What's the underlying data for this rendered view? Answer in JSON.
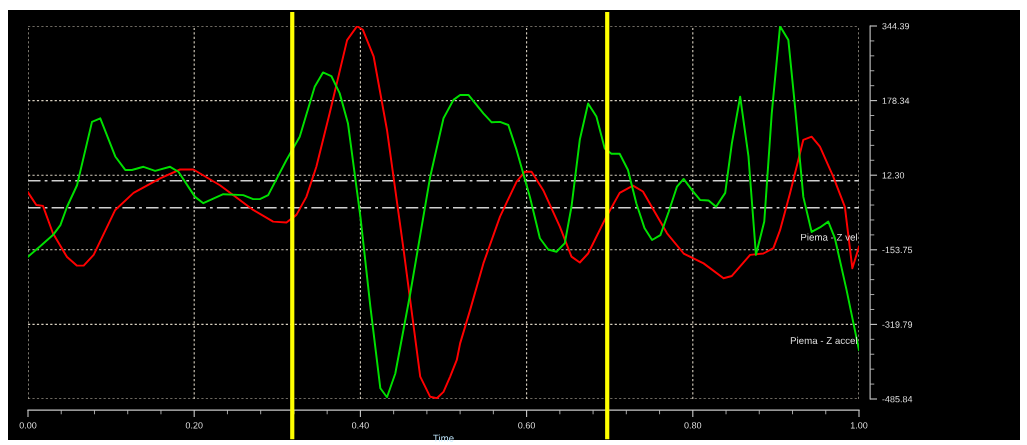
{
  "chart_data": {
    "type": "line",
    "xlabel": "Time",
    "xlim": [
      0,
      1
    ],
    "ylim": [
      -485.84,
      344.39
    ],
    "xticks": [
      {
        "value": 0,
        "label": "0.00"
      },
      {
        "value": 0.2,
        "label": "0.20"
      },
      {
        "value": 0.4,
        "label": "0.40"
      },
      {
        "value": 0.6,
        "label": "0.60"
      },
      {
        "value": 0.8,
        "label": "0.80"
      },
      {
        "value": 1,
        "label": "1.00"
      }
    ],
    "yticks": [
      -485.84,
      -319.79,
      -153.75,
      {
        "value": 12.3,
        "label": "12.30"
      },
      178.34,
      344.39
    ],
    "grid": true,
    "legend": false,
    "line_style": "solid",
    "marker": "none",
    "series": [
      {
        "name": "Piema - Z vel",
        "color": "#ff0000",
        "x": [
          0.0,
          0.01,
          0.018,
          0.03,
          0.047,
          0.059,
          0.067,
          0.079,
          0.105,
          0.127,
          0.159,
          0.183,
          0.199,
          0.231,
          0.271,
          0.295,
          0.311,
          0.323,
          0.335,
          0.347,
          0.363,
          0.384,
          0.396,
          0.403,
          0.416,
          0.432,
          0.452,
          0.472,
          0.484,
          0.492,
          0.5,
          0.508,
          0.516,
          0.52,
          0.532,
          0.548,
          0.568,
          0.588,
          0.598,
          0.606,
          0.62,
          0.64,
          0.654,
          0.664,
          0.674,
          0.696,
          0.712,
          0.728,
          0.74,
          0.769,
          0.789,
          0.813,
          0.837,
          0.847,
          0.869,
          0.885,
          0.897,
          0.905,
          0.917,
          0.933,
          0.943,
          0.953,
          0.969,
          0.983,
          0.992,
          1.0
        ],
        "values": [
          -26,
          -54,
          -56,
          -117,
          -170,
          -189,
          -189,
          -165,
          -65,
          -27,
          5,
          25,
          25,
          -10,
          -65,
          -91,
          -93,
          -76,
          -36,
          31,
          150,
          313,
          344,
          336,
          276,
          113,
          -154,
          -436,
          -481,
          -484,
          -470,
          -436,
          -399,
          -362,
          -288,
          -184,
          -80,
          -2,
          20,
          20,
          -21,
          -102,
          -169,
          -182,
          -162,
          -80,
          -27,
          -11,
          -24,
          -117,
          -162,
          -184,
          -217,
          -212,
          -165,
          -162,
          -150,
          -110,
          -28,
          91,
          98,
          76,
          9,
          -58,
          -195,
          -147
        ]
      },
      {
        "name": "Piema - Z accel",
        "color": "#00e000",
        "x": [
          0.0,
          0.014,
          0.03,
          0.039,
          0.047,
          0.059,
          0.077,
          0.087,
          0.105,
          0.117,
          0.125,
          0.139,
          0.153,
          0.171,
          0.181,
          0.201,
          0.211,
          0.235,
          0.259,
          0.271,
          0.279,
          0.289,
          0.311,
          0.327,
          0.345,
          0.355,
          0.365,
          0.375,
          0.385,
          0.4,
          0.412,
          0.424,
          0.432,
          0.442,
          0.46,
          0.484,
          0.5,
          0.512,
          0.52,
          0.53,
          0.548,
          0.558,
          0.568,
          0.578,
          0.588,
          0.604,
          0.616,
          0.626,
          0.636,
          0.646,
          0.654,
          0.664,
          0.674,
          0.684,
          0.694,
          0.702,
          0.712,
          0.722,
          0.732,
          0.742,
          0.751,
          0.761,
          0.771,
          0.781,
          0.789,
          0.799,
          0.809,
          0.819,
          0.828,
          0.839,
          0.847,
          0.857,
          0.867,
          0.876,
          0.886,
          0.895,
          0.905,
          0.915,
          0.923,
          0.933,
          0.943,
          0.953,
          0.963,
          0.971,
          0.985,
          1.0
        ],
        "values": [
          -169,
          -147,
          -121,
          -99,
          -58,
          -10,
          131,
          139,
          54,
          24,
          24,
          31,
          22,
          31,
          20,
          -36,
          -50,
          -30,
          -32,
          -41,
          -41,
          -32,
          46,
          98,
          209,
          241,
          233,
          195,
          128,
          -80,
          -280,
          -462,
          -482,
          -429,
          -251,
          9,
          139,
          180,
          191,
          191,
          150,
          130,
          131,
          124,
          68,
          -36,
          -128,
          -153,
          -158,
          -139,
          -58,
          91,
          172,
          143,
          72,
          60,
          60,
          24,
          -50,
          -106,
          -132,
          -121,
          -69,
          -13,
          4,
          -21,
          -43,
          -44,
          -58,
          -27,
          83,
          187,
          54,
          -165,
          -91,
          150,
          344,
          313,
          165,
          -36,
          -114,
          -104,
          -91,
          -128,
          -243,
          -377
        ]
      }
    ],
    "ref_lines": [
      {
        "axis": "y",
        "value": 0,
        "color": "#d0d0d0",
        "line_style": "dashed"
      },
      {
        "axis": "y",
        "value": -60,
        "color": "#d0d0d0",
        "line_style": "dashed"
      },
      {
        "axis": "x",
        "value": 0.318,
        "color": "#ffff00",
        "line_style": "solid"
      },
      {
        "axis": "x",
        "value": 0.697,
        "color": "#ffff00",
        "line_style": "solid"
      }
    ]
  }
}
